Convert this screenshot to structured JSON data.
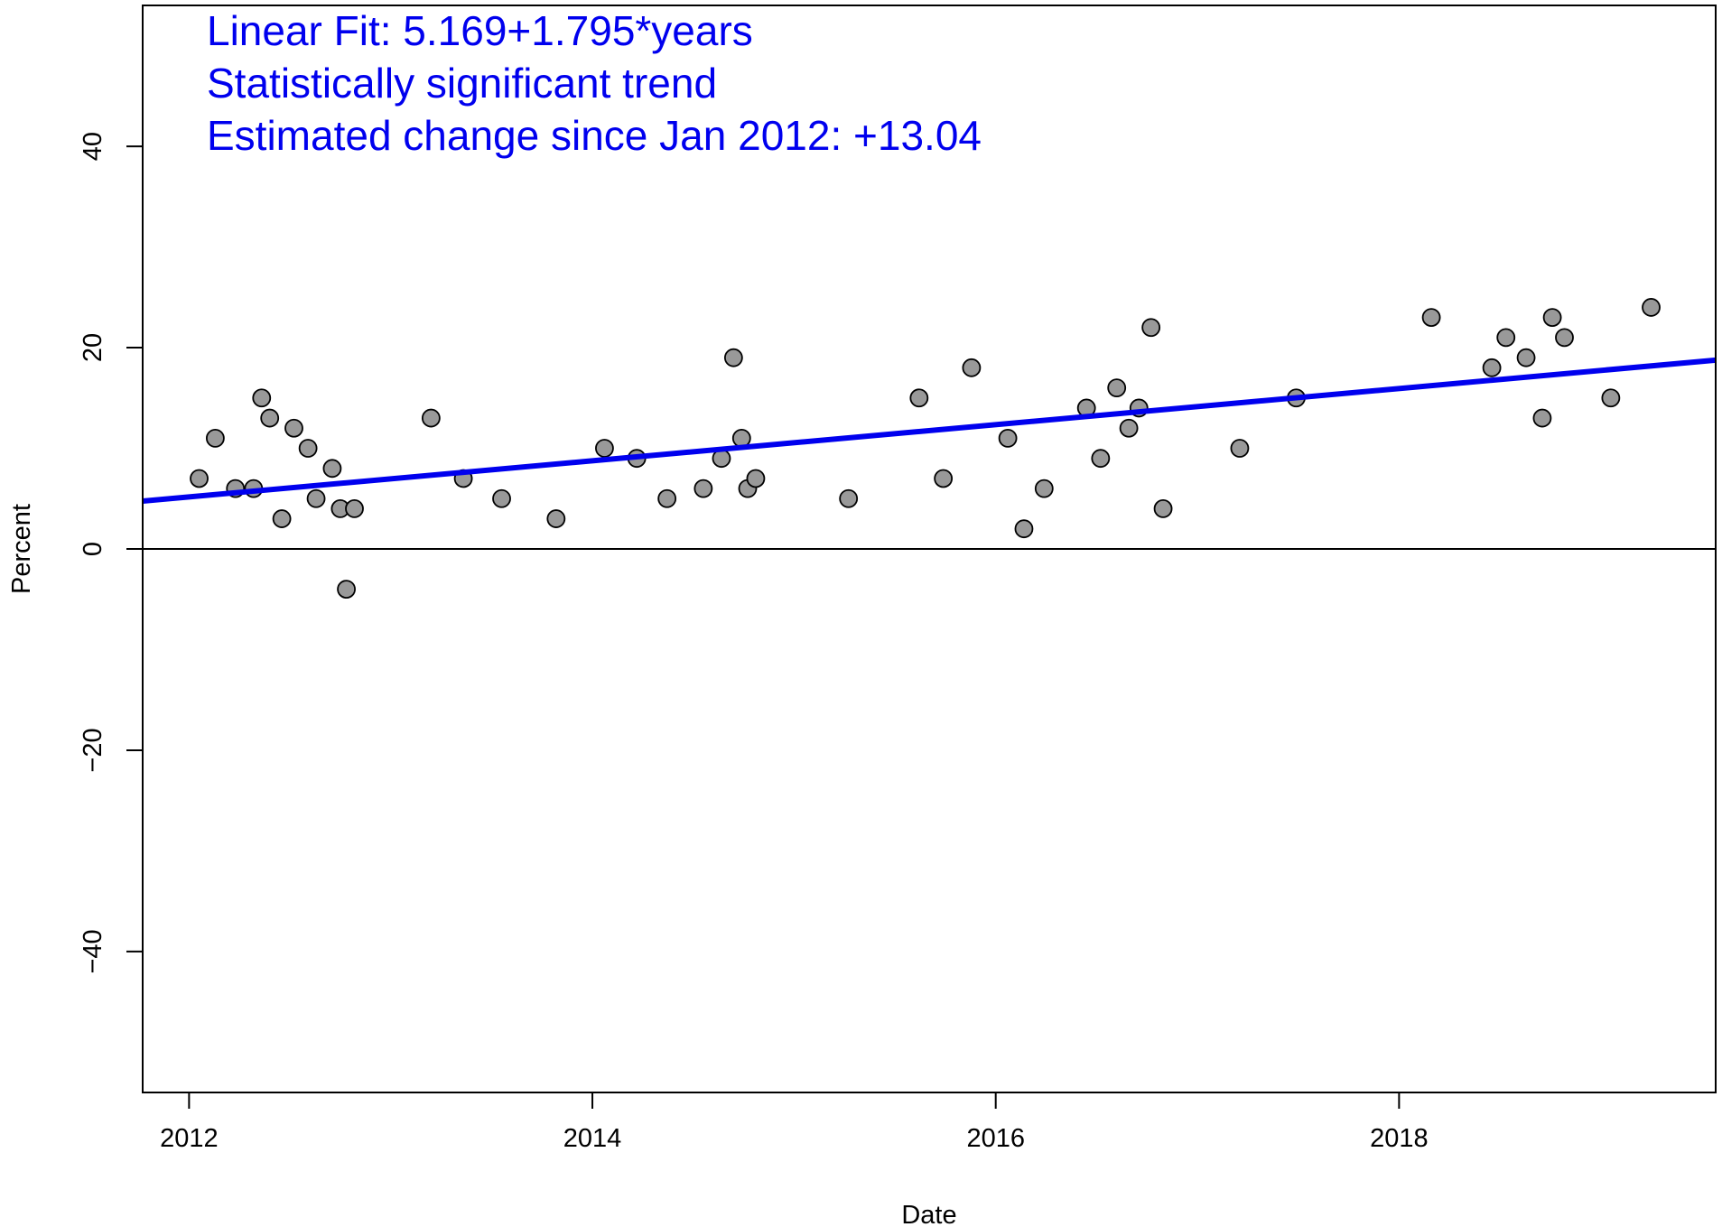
{
  "chart_data": {
    "type": "scatter",
    "xlabel": "Date",
    "ylabel": "Percent",
    "xlim": [
      2011.77,
      2019.57
    ],
    "ylim": [
      -54,
      54
    ],
    "x_ticks": [
      2012,
      2014,
      2016,
      2018
    ],
    "y_ticks": [
      -40,
      -20,
      0,
      20,
      40
    ],
    "grid": false,
    "reference_line_y": 0,
    "annotations": [
      "Linear Fit: 5.169+1.795*years",
      "Statistically significant trend",
      "Estimated change since Jan 2012: +13.04"
    ],
    "colors": {
      "points": "#999999",
      "fit": "#0000ee",
      "annotation": "#0000ee"
    },
    "fit": {
      "intercept": 5.169,
      "slope": 1.795,
      "origin_year": 2012
    },
    "points": [
      {
        "x": 2012.05,
        "y": 7
      },
      {
        "x": 2012.13,
        "y": 11
      },
      {
        "x": 2012.23,
        "y": 6
      },
      {
        "x": 2012.32,
        "y": 6
      },
      {
        "x": 2012.36,
        "y": 15
      },
      {
        "x": 2012.4,
        "y": 13
      },
      {
        "x": 2012.46,
        "y": 3
      },
      {
        "x": 2012.52,
        "y": 12
      },
      {
        "x": 2012.59,
        "y": 10
      },
      {
        "x": 2012.63,
        "y": 5
      },
      {
        "x": 2012.71,
        "y": 8
      },
      {
        "x": 2012.75,
        "y": 4
      },
      {
        "x": 2012.78,
        "y": -4
      },
      {
        "x": 2012.82,
        "y": 4
      },
      {
        "x": 2013.2,
        "y": 13
      },
      {
        "x": 2013.36,
        "y": 7
      },
      {
        "x": 2013.55,
        "y": 5
      },
      {
        "x": 2013.82,
        "y": 3
      },
      {
        "x": 2014.06,
        "y": 10
      },
      {
        "x": 2014.22,
        "y": 9
      },
      {
        "x": 2014.37,
        "y": 5
      },
      {
        "x": 2014.55,
        "y": 6
      },
      {
        "x": 2014.64,
        "y": 9
      },
      {
        "x": 2014.7,
        "y": 19
      },
      {
        "x": 2014.74,
        "y": 11
      },
      {
        "x": 2014.77,
        "y": 6
      },
      {
        "x": 2014.81,
        "y": 7
      },
      {
        "x": 2015.27,
        "y": 5
      },
      {
        "x": 2015.62,
        "y": 15
      },
      {
        "x": 2015.74,
        "y": 7
      },
      {
        "x": 2015.88,
        "y": 18
      },
      {
        "x": 2016.06,
        "y": 11
      },
      {
        "x": 2016.14,
        "y": 2
      },
      {
        "x": 2016.24,
        "y": 6
      },
      {
        "x": 2016.45,
        "y": 14
      },
      {
        "x": 2016.52,
        "y": 9
      },
      {
        "x": 2016.6,
        "y": 16
      },
      {
        "x": 2016.66,
        "y": 12
      },
      {
        "x": 2016.71,
        "y": 14
      },
      {
        "x": 2016.77,
        "y": 22
      },
      {
        "x": 2016.83,
        "y": 4
      },
      {
        "x": 2017.21,
        "y": 10
      },
      {
        "x": 2017.49,
        "y": 15
      },
      {
        "x": 2018.16,
        "y": 23
      },
      {
        "x": 2018.46,
        "y": 18
      },
      {
        "x": 2018.53,
        "y": 21
      },
      {
        "x": 2018.63,
        "y": 19
      },
      {
        "x": 2018.71,
        "y": 13
      },
      {
        "x": 2018.76,
        "y": 23
      },
      {
        "x": 2018.82,
        "y": 21
      },
      {
        "x": 2019.05,
        "y": 15
      },
      {
        "x": 2019.25,
        "y": 24
      }
    ]
  }
}
